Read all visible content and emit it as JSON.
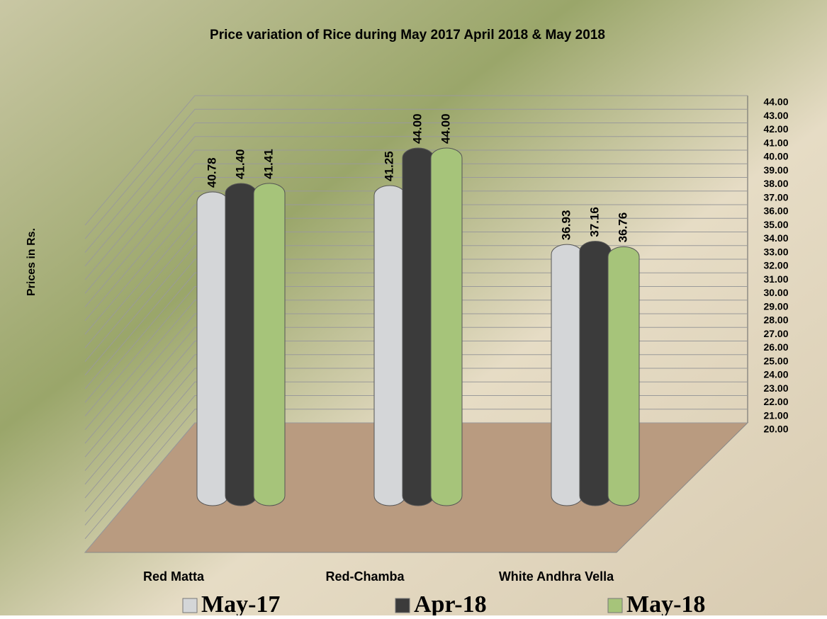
{
  "chart_data": {
    "type": "bar",
    "title": "Price variation of Rice during  May  2017  April 2018 &  May 2018",
    "y_axis_label": "Prices in Rs.",
    "categories": [
      "Red Matta",
      "Red-Chamba",
      "White Andhra Vella"
    ],
    "series": [
      {
        "name": "May-17",
        "color": "#d4d6d8",
        "values": [
          40.78,
          41.25,
          36.93
        ],
        "value_labels": [
          "40.78",
          "41.25",
          "36.93"
        ]
      },
      {
        "name": "Apr-18",
        "color": "#3b3b3b",
        "values": [
          41.4,
          44.0,
          37.16
        ],
        "value_labels": [
          "41.40",
          "44.00",
          "37.16"
        ]
      },
      {
        "name": "May-18",
        "color": "#a6c47a",
        "values": [
          41.41,
          44.0,
          36.76
        ],
        "value_labels": [
          "41.41",
          "44.00",
          "36.76"
        ]
      }
    ],
    "ylim": [
      20,
      44
    ],
    "yticks": [
      {
        "value": 20,
        "label": "20.00"
      },
      {
        "value": 21,
        "label": "21.00"
      },
      {
        "value": 22,
        "label": "22.00"
      },
      {
        "value": 23,
        "label": "23.00"
      },
      {
        "value": 24,
        "label": "24.00"
      },
      {
        "value": 25,
        "label": "25.00"
      },
      {
        "value": 26,
        "label": "26.00"
      },
      {
        "value": 27,
        "label": "27.00"
      },
      {
        "value": 28,
        "label": "28.00"
      },
      {
        "value": 29,
        "label": "29.00"
      },
      {
        "value": 30,
        "label": "30.00"
      },
      {
        "value": 31,
        "label": "31.00"
      },
      {
        "value": 32,
        "label": "32.00"
      },
      {
        "value": 33,
        "label": "33.00"
      },
      {
        "value": 34,
        "label": "34.00"
      },
      {
        "value": 35,
        "label": "35.00"
      },
      {
        "value": 36,
        "label": "36.00"
      },
      {
        "value": 37,
        "label": "37.00"
      },
      {
        "value": 38,
        "label": "38.00"
      },
      {
        "value": 39,
        "label": "39.00"
      },
      {
        "value": 40,
        "label": "40.00"
      },
      {
        "value": 41,
        "label": "41.00"
      },
      {
        "value": 42,
        "label": "42.00"
      },
      {
        "value": 43,
        "label": "43.00"
      },
      {
        "value": 44,
        "label": "44.00"
      }
    ],
    "grid": true,
    "legend": "bottom"
  }
}
